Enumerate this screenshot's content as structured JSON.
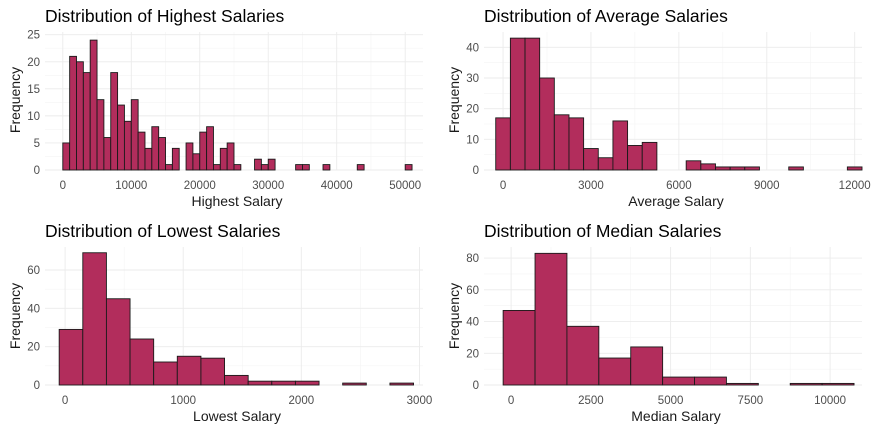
{
  "colors": {
    "bar_fill": "#b22d5c",
    "bar_stroke": "#1a1a1a",
    "grid": "#ebebeb",
    "background": "#ffffff"
  },
  "chart_data": [
    {
      "type": "bar",
      "title": "Distribution of Highest Salaries",
      "xlabel": "Highest Salary",
      "ylabel": "Frequency",
      "xlim": [
        -2600,
        52600
      ],
      "ylim": [
        0,
        25.5
      ],
      "xticks": [
        0,
        10000,
        20000,
        30000,
        40000,
        50000
      ],
      "xtick_labels": [
        "0",
        "10000",
        "20000",
        "30000",
        "40000",
        "50000"
      ],
      "yticks": [
        0,
        5,
        10,
        15,
        20,
        25
      ],
      "ytick_labels": [
        "0",
        "5",
        "10",
        "15",
        "20",
        "25"
      ],
      "bin_start": 0,
      "bin_width": 1000,
      "values": [
        5,
        21,
        20,
        18,
        24,
        13,
        6,
        18,
        12,
        9,
        13,
        7,
        4,
        8,
        6,
        1,
        4,
        0,
        5,
        3,
        7,
        8,
        1,
        4,
        5,
        1,
        0,
        0,
        2,
        1,
        2,
        0,
        0,
        0,
        1,
        1,
        0,
        0,
        1,
        0,
        0,
        0,
        0,
        1,
        0,
        0,
        0,
        0,
        0,
        0,
        1
      ]
    },
    {
      "type": "bar",
      "title": "Distribution of Average Salaries",
      "xlabel": "Average Salary",
      "ylabel": "Frequency",
      "xlim": [
        -650,
        12250
      ],
      "ylim": [
        0,
        45
      ],
      "xticks": [
        0,
        3000,
        6000,
        9000,
        12000
      ],
      "xtick_labels": [
        "0",
        "3000",
        "6000",
        "9000",
        "12000"
      ],
      "yticks": [
        0,
        10,
        20,
        30,
        40
      ],
      "ytick_labels": [
        "0",
        "10",
        "20",
        "30",
        "40"
      ],
      "bin_start": -250,
      "bin_width": 500,
      "values": [
        17,
        43,
        43,
        30,
        18,
        17,
        7,
        4,
        16,
        8,
        9,
        0,
        0,
        3,
        2,
        1,
        1,
        1,
        0,
        0,
        1,
        0,
        0,
        0,
        1
      ]
    },
    {
      "type": "bar",
      "title": "Distribution of Lowest Salaries",
      "xlabel": "Lowest Salary",
      "ylabel": "Frequency",
      "xlim": [
        -170,
        3030
      ],
      "ylim": [
        0,
        72
      ],
      "xticks": [
        0,
        1000,
        2000,
        3000
      ],
      "xtick_labels": [
        "0",
        "1000",
        "2000",
        "3000"
      ],
      "yticks": [
        0,
        20,
        40,
        60
      ],
      "ytick_labels": [
        "0",
        "20",
        "40",
        "60"
      ],
      "bin_start": -50,
      "bin_width": 200,
      "values": [
        29,
        69,
        45,
        24,
        12,
        15,
        14,
        5,
        2,
        2,
        2,
        0,
        1,
        0,
        1
      ]
    },
    {
      "type": "bar",
      "title": "Distribution of Median Salaries",
      "xlabel": "Median Salary",
      "ylabel": "Frequency",
      "xlim": [
        -850,
        11000
      ],
      "ylim": [
        0,
        87
      ],
      "xticks": [
        0,
        2500,
        5000,
        7500,
        10000
      ],
      "xtick_labels": [
        "0",
        "2500",
        "5000",
        "7500",
        "10000"
      ],
      "yticks": [
        0,
        20,
        40,
        60,
        80
      ],
      "ytick_labels": [
        "0",
        "20",
        "40",
        "60",
        "80"
      ],
      "bin_start": -250,
      "bin_width": 1000,
      "values": [
        47,
        83,
        37,
        17,
        24,
        5,
        5,
        1,
        0,
        1,
        1
      ]
    }
  ]
}
